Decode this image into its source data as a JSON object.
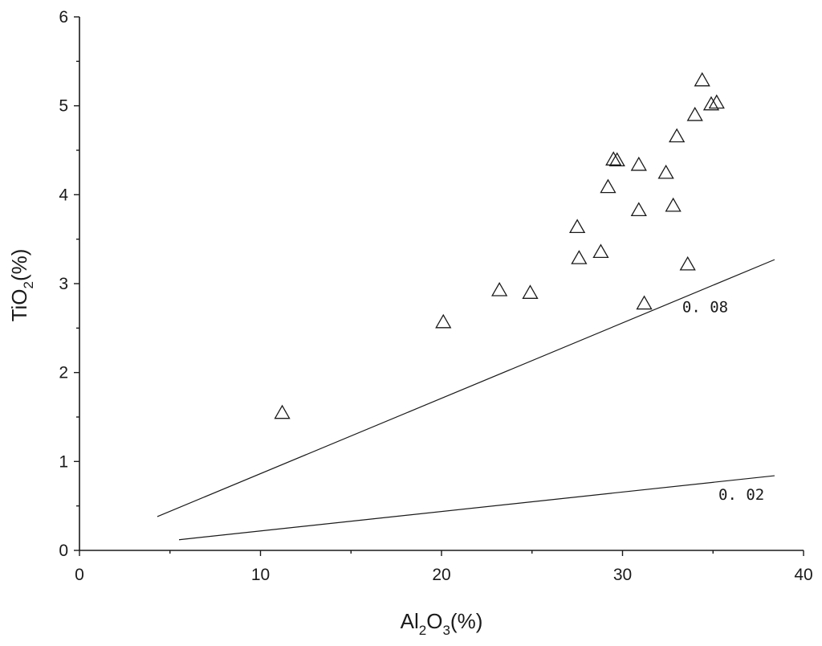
{
  "chart_data": {
    "type": "scatter",
    "x_label": {
      "main": "Al",
      "sub1": "2",
      "mid": "O",
      "sub2": "3",
      "tail": "(%)"
    },
    "y_label": {
      "main": "TiO",
      "sub1": "2",
      "tail": "(%)"
    },
    "xlim": [
      0,
      40
    ],
    "ylim": [
      0,
      6
    ],
    "x_ticks": [
      0,
      10,
      20,
      30,
      40
    ],
    "y_ticks": [
      0,
      1,
      2,
      3,
      4,
      5,
      6
    ],
    "x_tick_labels": [
      "0",
      "10",
      "20",
      "30",
      "40"
    ],
    "y_tick_labels": [
      "0",
      "1",
      "2",
      "3",
      "4",
      "5",
      "6"
    ],
    "grid": false,
    "marker": "open-triangle",
    "points": [
      {
        "x": 11.2,
        "y": 1.55
      },
      {
        "x": 20.1,
        "y": 2.57
      },
      {
        "x": 23.2,
        "y": 2.93
      },
      {
        "x": 24.9,
        "y": 2.9
      },
      {
        "x": 27.5,
        "y": 3.64
      },
      {
        "x": 27.6,
        "y": 3.29
      },
      {
        "x": 28.8,
        "y": 3.36
      },
      {
        "x": 29.2,
        "y": 4.09
      },
      {
        "x": 29.5,
        "y": 4.4
      },
      {
        "x": 29.7,
        "y": 4.39
      },
      {
        "x": 30.9,
        "y": 4.34
      },
      {
        "x": 30.9,
        "y": 3.83
      },
      {
        "x": 31.2,
        "y": 2.78
      },
      {
        "x": 32.4,
        "y": 4.25
      },
      {
        "x": 32.8,
        "y": 3.88
      },
      {
        "x": 33.0,
        "y": 4.66
      },
      {
        "x": 33.6,
        "y": 3.22
      },
      {
        "x": 34.0,
        "y": 4.9
      },
      {
        "x": 34.4,
        "y": 5.29
      },
      {
        "x": 34.9,
        "y": 5.02
      },
      {
        "x": 35.2,
        "y": 5.04
      }
    ],
    "reference_lines": [
      {
        "label": "0. 08",
        "x": [
          4.3,
          38.4
        ],
        "y": [
          0.38,
          3.27
        ],
        "label_at": [
          33.3,
          2.68
        ]
      },
      {
        "label": "0. 02",
        "x": [
          5.5,
          38.4
        ],
        "y": [
          0.12,
          0.84
        ],
        "label_at": [
          35.3,
          0.57
        ]
      }
    ]
  }
}
